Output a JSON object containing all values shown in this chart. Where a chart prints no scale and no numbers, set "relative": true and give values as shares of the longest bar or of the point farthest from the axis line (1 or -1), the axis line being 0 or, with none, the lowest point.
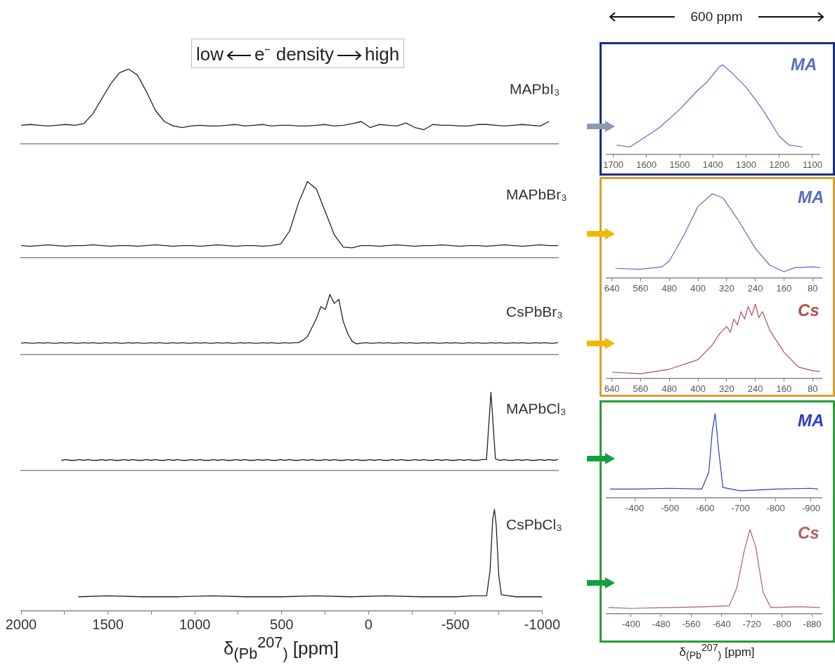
{
  "chart_data": [
    {
      "type": "line",
      "relative": true,
      "title": "MAPbI₃",
      "annotations": [
        "low",
        "e⁻ density",
        "high"
      ],
      "categories": [
        null,
        null,
        null,
        null,
        null,
        null,
        null,
        null,
        null,
        null,
        null,
        null,
        null,
        null,
        null,
        null,
        null,
        null,
        null,
        null,
        null,
        null,
        null,
        null,
        null,
        null,
        null,
        null,
        null,
        null,
        null,
        null,
        null,
        null,
        null,
        null,
        null,
        null,
        null,
        null,
        null,
        null,
        null,
        null,
        null,
        null,
        null,
        null,
        null,
        null,
        null,
        null,
        null,
        null,
        null,
        null,
        null,
        null,
        null,
        null,
        null
      ],
      "series": [
        {
          "color": "#222222",
          "values": [
            0.25,
            0.26,
            0.25,
            0.24,
            0.25,
            0.26,
            0.25,
            0.27,
            0.4,
            0.6,
            0.8,
            0.95,
            1,
            0.92,
            0.7,
            0.45,
            0.3,
            0.24,
            0.22,
            0.24,
            0.25,
            0.24,
            0.24,
            0.25,
            0.26,
            0.24,
            0.25,
            0.26,
            0.24,
            0.25,
            0.25,
            0.24,
            0.24,
            0.25,
            0.26,
            0.24,
            0.25,
            0.27,
            0.3,
            0.22,
            0.26,
            0.25,
            0.24,
            0.28,
            0.22,
            0.19,
            0.26,
            0.25,
            0.25,
            0.24,
            0.24,
            0.26,
            0.26,
            0.25,
            0.24,
            0.25,
            0.26,
            0.25,
            0.24,
            0.3,
            null
          ]
        }
      ]
    },
    {
      "type": "line",
      "relative": true,
      "title": "MAPbBr₃",
      "categories": [
        null,
        null,
        null,
        null,
        null,
        null,
        null,
        null,
        null,
        null,
        null,
        null,
        null,
        null,
        null,
        null,
        null,
        null,
        null,
        null,
        null,
        null,
        null,
        null,
        null,
        null,
        null,
        null,
        null,
        null,
        null,
        null,
        null,
        null,
        null,
        null,
        null,
        null,
        null,
        null,
        null,
        null,
        null,
        null,
        null,
        null,
        null,
        null,
        null,
        null,
        null,
        null,
        null,
        null,
        null,
        null,
        null,
        null,
        null,
        null,
        null
      ],
      "series": [
        {
          "color": "#222222",
          "values": [
            0.16,
            0.15,
            0.16,
            0.17,
            0.16,
            0.15,
            0.16,
            0.16,
            0.17,
            0.16,
            0.15,
            0.16,
            0.16,
            0.15,
            0.16,
            0.17,
            0.16,
            0.15,
            0.16,
            0.16,
            0.15,
            0.16,
            0.17,
            0.16,
            0.15,
            0.16,
            0.16,
            0.15,
            0.16,
            0.18,
            0.35,
            0.72,
            1,
            0.9,
            0.6,
            0.3,
            0.14,
            0.13,
            0.16,
            0.16,
            0.15,
            0.16,
            0.17,
            0.16,
            0.15,
            0.16,
            0.16,
            0.17,
            0.16,
            0.15,
            0.16,
            0.16,
            0.15,
            0.16,
            0.17,
            0.16,
            0.15,
            0.16,
            0.17,
            0.16,
            0.16
          ]
        }
      ]
    },
    {
      "type": "line",
      "relative": true,
      "title": "CsPbBr₃",
      "categories": [
        null,
        null,
        null,
        null,
        null,
        null,
        null,
        null,
        null,
        null,
        null,
        null,
        null,
        null,
        null,
        null,
        null,
        null,
        null,
        null,
        null,
        null,
        null,
        null,
        null,
        null,
        null,
        null,
        null,
        null,
        null,
        null,
        null,
        null,
        null,
        null,
        null,
        null,
        null,
        null,
        null,
        null,
        null,
        null,
        null,
        null,
        null,
        null,
        null,
        null,
        null,
        null,
        null,
        null,
        null,
        null,
        null,
        null,
        null,
        null,
        null,
        null,
        null,
        null,
        null,
        null,
        null,
        null,
        null,
        null,
        null,
        null,
        null,
        null,
        null,
        null,
        null,
        null,
        null,
        null,
        null,
        null,
        null,
        null,
        null,
        null,
        null,
        null,
        null,
        null,
        null,
        null,
        null,
        null,
        null,
        null,
        null,
        null,
        null,
        null,
        null,
        null,
        null,
        null,
        null,
        null,
        null,
        null,
        null,
        null,
        null,
        null,
        null,
        null,
        null,
        null,
        null,
        null,
        null,
        null,
        null
      ],
      "series": [
        {
          "color": "#222222",
          "values": [
            0.19,
            0.2,
            0.19,
            0.19,
            0.2,
            0.19,
            0.2,
            0.19,
            0.19,
            0.2,
            0.19,
            0.2,
            0.19,
            0.19,
            0.2,
            0.19,
            0.2,
            0.19,
            0.19,
            0.2,
            0.19,
            0.2,
            0.19,
            0.19,
            0.2,
            0.19,
            0.2,
            0.19,
            0.19,
            0.2,
            0.19,
            0.2,
            0.19,
            0.19,
            0.2,
            0.19,
            0.2,
            0.19,
            0.19,
            0.2,
            0.19,
            0.2,
            0.19,
            0.19,
            0.2,
            0.19,
            0.2,
            0.19,
            0.19,
            0.2,
            0.19,
            0.2,
            0.19,
            0.19,
            0.2,
            0.19,
            0.2,
            0.19,
            0.19,
            0.2,
            0.19,
            0.2,
            0.2,
            0.24,
            0.3,
            0.45,
            0.6,
            0.8,
            0.75,
            1,
            0.85,
            0.92,
            0.55,
            0.35,
            0.22,
            0.18,
            0.19,
            0.2,
            0.19,
            0.19,
            0.2,
            0.19,
            0.2,
            0.19,
            0.19,
            0.2,
            0.19,
            0.2,
            0.19,
            0.19,
            0.2,
            0.19,
            0.2,
            0.19,
            0.19,
            0.2,
            0.19,
            0.2,
            0.19,
            0.19,
            0.2,
            0.19,
            0.2,
            0.19,
            0.19,
            0.2,
            0.19,
            0.2,
            0.19,
            0.19,
            0.2,
            0.19,
            0.2,
            0.19,
            0.19,
            0.2,
            0.19,
            0.2,
            0.19,
            0.19,
            0.2
          ]
        }
      ]
    },
    {
      "type": "line",
      "relative": true,
      "title": "MAPbCl₃",
      "categories": [
        null,
        null,
        null,
        null,
        null,
        null,
        null,
        null,
        null,
        null,
        null,
        null,
        null,
        null,
        null,
        null,
        null,
        null,
        null,
        null,
        null,
        null,
        null,
        null,
        null,
        null,
        null,
        null,
        null,
        null,
        null,
        null,
        null,
        null,
        null,
        null,
        null,
        null,
        null,
        null,
        null,
        null,
        null,
        null,
        null,
        null,
        null,
        null,
        null,
        null,
        null,
        null,
        null,
        null,
        null,
        null,
        null,
        null,
        null,
        null,
        null,
        null,
        null,
        null,
        null,
        null,
        null,
        null,
        null,
        null,
        null,
        null,
        null,
        null,
        null,
        null,
        null,
        null,
        null,
        null,
        null,
        null,
        null,
        null,
        null,
        null,
        null,
        null,
        null,
        null,
        null,
        null,
        null,
        null,
        null,
        null,
        null,
        null,
        null,
        null,
        null,
        null,
        null,
        null,
        null,
        null,
        null,
        null,
        null,
        null,
        null,
        null,
        null,
        null,
        null,
        null,
        null,
        null,
        null,
        null,
        null
      ],
      "series": [
        {
          "color": "#222222",
          "values": [
            null,
            null,
            null,
            null,
            null,
            null,
            null,
            null,
            null,
            0.13,
            0.14,
            0.13,
            0.13,
            0.14,
            0.13,
            0.14,
            0.13,
            0.13,
            0.14,
            0.13,
            0.14,
            0.13,
            0.13,
            0.14,
            0.13,
            0.14,
            0.13,
            0.13,
            0.14,
            0.13,
            0.14,
            0.13,
            0.13,
            0.14,
            0.13,
            0.14,
            0.13,
            0.13,
            0.14,
            0.13,
            0.14,
            0.13,
            0.13,
            0.14,
            0.13,
            0.14,
            0.13,
            0.13,
            0.14,
            0.13,
            0.14,
            0.13,
            0.13,
            0.14,
            0.13,
            0.14,
            0.13,
            0.13,
            0.14,
            0.13,
            0.14,
            0.13,
            0.13,
            0.14,
            0.13,
            0.14,
            0.13,
            0.13,
            0.14,
            0.13,
            0.14,
            0.13,
            0.13,
            0.14,
            0.13,
            0.14,
            0.13,
            0.13,
            0.14,
            0.13,
            0.14,
            0.13,
            0.13,
            0.14,
            0.13,
            0.14,
            0.13,
            0.13,
            0.14,
            0.13,
            0.14,
            0.13,
            0.13,
            0.14,
            0.13,
            0.14,
            0.13,
            0.13,
            0.14,
            0.13,
            0.14,
            0.13,
            0.13,
            0.14,
            0.14,
            1,
            0.15,
            0.13,
            0.14,
            0.13,
            0.13,
            0.14,
            0.13,
            0.14,
            0.13,
            0.13,
            0.14,
            0.13,
            0.14,
            0.13,
            0.14
          ]
        }
      ]
    },
    {
      "type": "line",
      "relative": true,
      "title": "CsPbCl₃",
      "xlim": [
        2000,
        -1000
      ],
      "xlabel": "δ$_{(Pb}$$^{207}$$_{)}$ [ppm]",
      "xticks": [
        2000,
        {
          "value": 1750,
          "label": null
        },
        1500,
        {
          "value": 1250,
          "label": null
        },
        1000,
        {
          "value": 750,
          "label": null
        },
        500,
        {
          "value": 250,
          "label": null
        },
        0,
        {
          "value": -250,
          "label": null
        },
        -500,
        {
          "value": -750,
          "label": null
        },
        -1000
      ],
      "series": [
        {
          "color": "#222222",
          "x": [
            1670,
            1500,
            1300,
            1100,
            900,
            700,
            500,
            300,
            100,
            -100,
            -300,
            -500,
            -600,
            -680,
            -700,
            -715,
            -725,
            -735,
            -750,
            -765,
            -850,
            -1000
          ],
          "values": [
            0.14,
            0.15,
            0.14,
            0.14,
            0.15,
            0.14,
            0.14,
            0.15,
            0.14,
            0.15,
            0.14,
            0.14,
            0.15,
            0.15,
            0.4,
            0.9,
            1,
            0.85,
            0.35,
            0.16,
            0.14,
            0.14
          ]
        }
      ]
    },
    {
      "type": "line",
      "relative": true,
      "title": "MA",
      "annotations": [
        "600 ppm"
      ],
      "xlim": [
        1720,
        1080
      ],
      "xticks": [
        1700,
        1600,
        1500,
        1400,
        1300,
        1200,
        1100
      ],
      "series": [
        {
          "color": "#5a6cc0",
          "x": [
            1690,
            1650,
            1600,
            1560,
            1500,
            1450,
            1420,
            1380,
            1370,
            1340,
            1300,
            1250,
            1200,
            1170,
            1130
          ],
          "values": [
            0.1,
            0.08,
            0.2,
            0.3,
            0.5,
            0.7,
            0.8,
            0.98,
            1,
            0.9,
            0.75,
            0.5,
            0.2,
            0.1,
            0.08
          ]
        }
      ]
    },
    {
      "type": "line",
      "relative": true,
      "title": "MA",
      "xlim": [
        655,
        55
      ],
      "xticks": [
        640,
        560,
        480,
        400,
        320,
        240,
        160,
        80
      ],
      "series": [
        {
          "color": "#5a6cc0",
          "x": [
            630,
            560,
            500,
            480,
            440,
            400,
            360,
            330,
            290,
            240,
            200,
            160,
            130,
            80,
            60
          ],
          "values": [
            0.11,
            0.1,
            0.13,
            0.2,
            0.5,
            0.85,
            1,
            0.95,
            0.7,
            0.35,
            0.15,
            0.07,
            0.12,
            0.13,
            0.12
          ]
        }
      ]
    },
    {
      "type": "line",
      "relative": true,
      "title": "Cs",
      "xlim": [
        655,
        55
      ],
      "xticks": [
        640,
        560,
        480,
        400,
        320,
        240,
        160,
        80
      ],
      "series": [
        {
          "color": "#b05050",
          "x": [
            640,
            560,
            480,
            400,
            360,
            340,
            320,
            310,
            300,
            290,
            280,
            270,
            260,
            250,
            240,
            230,
            220,
            200,
            180,
            160,
            120,
            80,
            60
          ],
          "values": [
            0.08,
            0.06,
            0.12,
            0.25,
            0.45,
            0.6,
            0.7,
            0.62,
            0.8,
            0.72,
            0.9,
            0.8,
            0.97,
            0.85,
            1,
            0.82,
            0.9,
            0.65,
            0.5,
            0.35,
            0.15,
            0.1,
            0.09
          ]
        }
      ]
    },
    {
      "type": "line",
      "relative": true,
      "title": "MA",
      "xlim": [
        -320,
        -930
      ],
      "xticks": [
        -400,
        -500,
        -600,
        -700,
        -800,
        -900
      ],
      "series": [
        {
          "color": "#2a3ccc",
          "x": [
            -330,
            -400,
            -500,
            -590,
            -610,
            -620,
            -628,
            -637,
            -650,
            -700,
            -800,
            -900,
            -920
          ],
          "values": [
            0.1,
            0.1,
            0.11,
            0.1,
            0.3,
            0.8,
            1,
            0.6,
            0.12,
            0.08,
            0.1,
            0.11,
            0.1
          ]
        }
      ]
    },
    {
      "type": "line",
      "relative": true,
      "title": "Cs",
      "xlabel": "δ$_{(Pb}$$^{207}$$_{)}$ [ppm]",
      "xlim": [
        -335,
        -905
      ],
      "xticks": [
        -400,
        -480,
        -560,
        -640,
        -720,
        -800,
        -880
      ],
      "series": [
        {
          "color": "#b06060",
          "x": [
            -340,
            -400,
            -500,
            -600,
            -660,
            -680,
            -700,
            -715,
            -730,
            -750,
            -770,
            -850,
            -900
          ],
          "values": [
            0.07,
            0.06,
            0.07,
            0.08,
            0.09,
            0.3,
            0.75,
            1,
            0.8,
            0.25,
            0.07,
            0.08,
            0.07
          ]
        }
      ]
    }
  ]
}
